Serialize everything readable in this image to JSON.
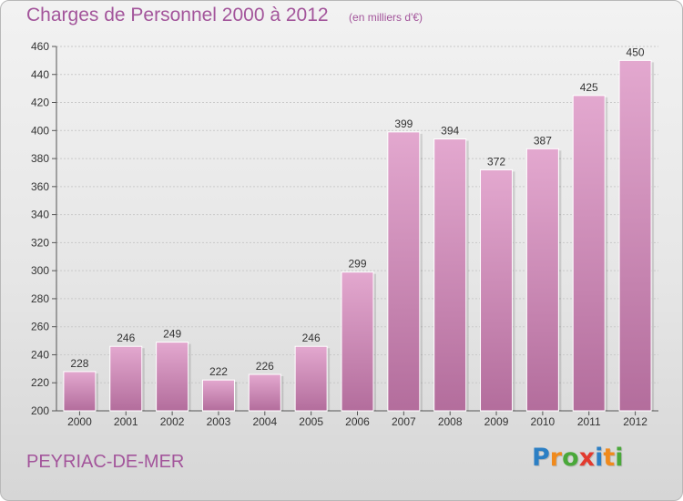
{
  "title": "Charges de Personnel 2000 à 2012",
  "subtitle": "(en milliers d'€)",
  "commune": "PEYRIAC-DE-MER",
  "logo": {
    "letters": [
      "P",
      "r",
      "o",
      "x",
      "i",
      "t",
      "i"
    ],
    "colors": [
      "#2c7fc4",
      "#f08a1c",
      "#4aa83a",
      "#e23a2e",
      "#2c7fc4",
      "#f08a1c",
      "#4aa83a"
    ]
  },
  "colors": {
    "bar_top": "#e3a8cf",
    "bar_bottom": "#b36d9c",
    "accent": "#a3559b"
  },
  "chart_data": {
    "type": "bar",
    "title": "Charges de Personnel 2000 à 2012",
    "subtitle": "(en milliers d'€)",
    "categories": [
      "2000",
      "2001",
      "2002",
      "2003",
      "2004",
      "2005",
      "2006",
      "2007",
      "2008",
      "2009",
      "2010",
      "2011",
      "2012"
    ],
    "values": [
      228,
      246,
      249,
      222,
      226,
      246,
      299,
      399,
      394,
      372,
      387,
      425,
      450
    ],
    "ylim": [
      200,
      460
    ],
    "yticks": [
      200,
      220,
      240,
      260,
      280,
      300,
      320,
      340,
      360,
      380,
      400,
      420,
      440,
      460
    ],
    "grid": true,
    "legend": "none"
  }
}
